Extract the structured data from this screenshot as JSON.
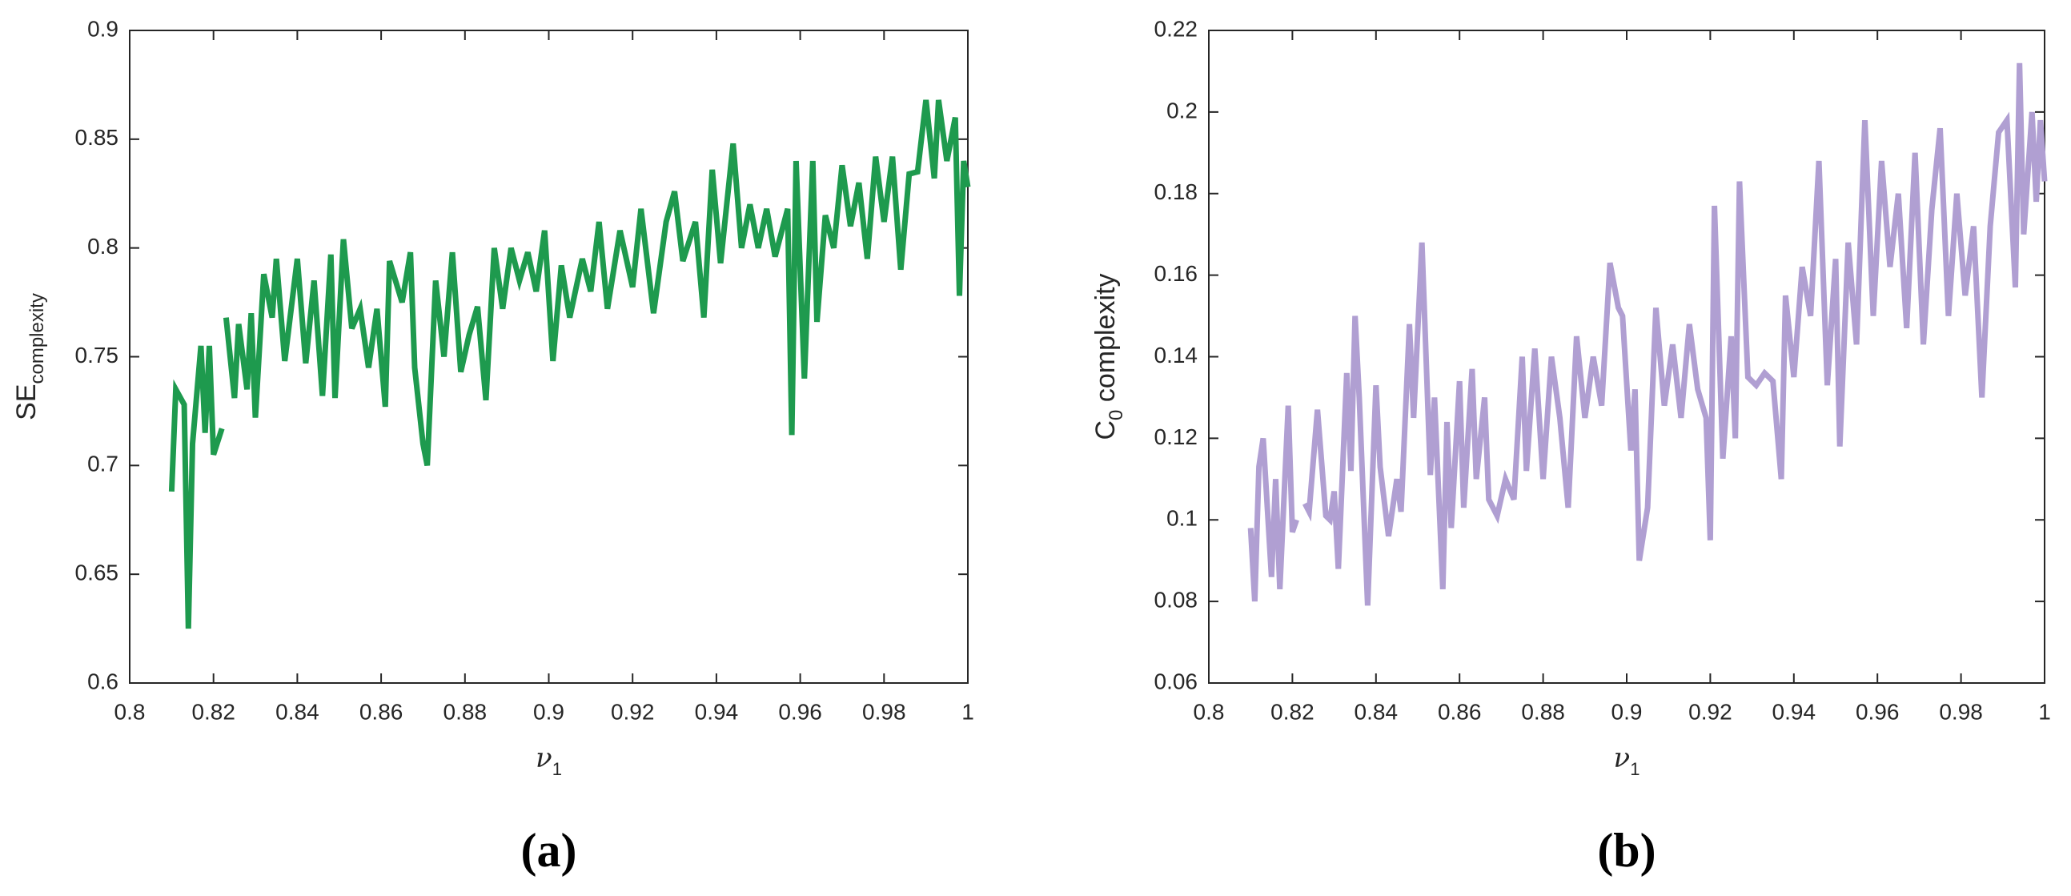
{
  "chart_data": [
    {
      "type": "line",
      "panel_label": "(a)",
      "xlabel": {
        "symbol": "ν",
        "subscript": "1"
      },
      "ylabel": {
        "text": "SE",
        "subscript": "complexity"
      },
      "xlim": [
        0.8,
        1
      ],
      "xticks": [
        0.8,
        0.82,
        0.84,
        0.86,
        0.88,
        0.9,
        0.92,
        0.94,
        0.96,
        0.98,
        1
      ],
      "ylim": [
        0.6,
        0.9
      ],
      "yticks": [
        0.6,
        0.65,
        0.7,
        0.75,
        0.8,
        0.85,
        0.9
      ],
      "color": "#1e9a4e",
      "x": [
        0.81,
        0.811,
        0.813,
        0.814,
        0.815,
        0.817,
        0.818,
        0.819,
        0.82,
        0.822,
        0.8225,
        0.823,
        0.825,
        0.826,
        0.828,
        0.829,
        0.83,
        0.832,
        0.834,
        0.835,
        0.837,
        0.84,
        0.842,
        0.844,
        0.846,
        0.848,
        0.849,
        0.851,
        0.853,
        0.855,
        0.857,
        0.859,
        0.861,
        0.862,
        0.865,
        0.867,
        0.868,
        0.87,
        0.871,
        0.873,
        0.875,
        0.877,
        0.879,
        0.881,
        0.883,
        0.885,
        0.887,
        0.889,
        0.891,
        0.893,
        0.895,
        0.897,
        0.899,
        0.901,
        0.903,
        0.905,
        0.908,
        0.91,
        0.912,
        0.914,
        0.917,
        0.92,
        0.922,
        0.925,
        0.928,
        0.93,
        0.932,
        0.935,
        0.937,
        0.939,
        0.941,
        0.944,
        0.946,
        0.948,
        0.95,
        0.952,
        0.954,
        0.957,
        0.958,
        0.959,
        0.961,
        0.963,
        0.964,
        0.966,
        0.968,
        0.97,
        0.972,
        0.974,
        0.976,
        0.978,
        0.98,
        0.982,
        0.984,
        0.986,
        0.988,
        0.99,
        0.992,
        0.993,
        0.995,
        0.997,
        0.998,
        0.999,
        1
      ],
      "values": [
        0.688,
        0.735,
        0.728,
        0.625,
        0.71,
        0.755,
        0.715,
        0.755,
        0.705,
        0.717,
        null,
        0.768,
        0.731,
        0.765,
        0.735,
        0.77,
        0.722,
        0.788,
        0.768,
        0.795,
        0.748,
        0.795,
        0.747,
        0.785,
        0.732,
        0.797,
        0.731,
        0.804,
        0.763,
        0.772,
        0.745,
        0.772,
        0.727,
        0.794,
        0.775,
        0.798,
        0.745,
        0.71,
        0.7,
        0.785,
        0.75,
        0.798,
        0.743,
        0.76,
        0.773,
        0.73,
        0.8,
        0.772,
        0.8,
        0.785,
        0.798,
        0.78,
        0.808,
        0.748,
        0.792,
        0.768,
        0.795,
        0.78,
        0.812,
        0.772,
        0.808,
        0.782,
        0.818,
        0.77,
        0.812,
        0.826,
        0.794,
        0.812,
        0.768,
        0.836,
        0.793,
        0.848,
        0.8,
        0.82,
        0.8,
        0.818,
        0.796,
        0.818,
        0.714,
        0.84,
        0.74,
        0.84,
        0.766,
        0.815,
        0.8,
        0.838,
        0.81,
        0.83,
        0.795,
        0.842,
        0.812,
        0.842,
        0.79,
        0.834,
        0.835,
        0.868,
        0.832,
        0.868,
        0.84,
        0.86,
        0.778,
        0.84,
        0.828
      ]
    },
    {
      "type": "line",
      "panel_label": "(b)",
      "xlabel": {
        "symbol": "ν",
        "subscript": "1"
      },
      "ylabel": {
        "text": "C",
        "subscript": "0",
        "suffix": " complexity"
      },
      "xlim": [
        0.8,
        1
      ],
      "xticks": [
        0.8,
        0.82,
        0.84,
        0.86,
        0.88,
        0.9,
        0.92,
        0.94,
        0.96,
        0.98,
        1
      ],
      "ylim": [
        0.06,
        0.22
      ],
      "yticks": [
        0.06,
        0.08,
        0.1,
        0.12,
        0.14,
        0.16,
        0.18,
        0.2,
        0.22
      ],
      "color": "#b09fd2",
      "x": [
        0.81,
        0.811,
        0.812,
        0.813,
        0.815,
        0.816,
        0.817,
        0.819,
        0.82,
        0.821,
        0.822,
        0.823,
        0.824,
        0.826,
        0.828,
        0.829,
        0.83,
        0.831,
        0.833,
        0.834,
        0.835,
        0.836,
        0.838,
        0.84,
        0.841,
        0.843,
        0.845,
        0.846,
        0.848,
        0.849,
        0.851,
        0.853,
        0.854,
        0.856,
        0.857,
        0.858,
        0.86,
        0.861,
        0.863,
        0.864,
        0.866,
        0.867,
        0.869,
        0.871,
        0.873,
        0.875,
        0.876,
        0.878,
        0.88,
        0.882,
        0.884,
        0.886,
        0.888,
        0.89,
        0.892,
        0.894,
        0.896,
        0.898,
        0.899,
        0.901,
        0.902,
        0.903,
        0.905,
        0.907,
        0.909,
        0.911,
        0.913,
        0.915,
        0.917,
        0.919,
        0.92,
        0.921,
        0.923,
        0.925,
        0.926,
        0.927,
        0.929,
        0.931,
        0.933,
        0.935,
        0.937,
        0.938,
        0.94,
        0.942,
        0.944,
        0.946,
        0.948,
        0.95,
        0.951,
        0.953,
        0.955,
        0.957,
        0.959,
        0.961,
        0.963,
        0.965,
        0.967,
        0.969,
        0.971,
        0.973,
        0.975,
        0.977,
        0.979,
        0.981,
        0.983,
        0.985,
        0.987,
        0.989,
        0.991,
        0.993,
        0.994,
        0.995,
        0.997,
        0.998,
        0.999,
        1
      ],
      "values": [
        0.098,
        0.08,
        0.113,
        0.12,
        0.086,
        0.11,
        0.083,
        0.128,
        0.097,
        0.1,
        null,
        0.104,
        0.102,
        0.127,
        0.101,
        0.1,
        0.107,
        0.088,
        0.136,
        0.112,
        0.15,
        0.13,
        0.079,
        0.133,
        0.113,
        0.096,
        0.11,
        0.102,
        0.148,
        0.125,
        0.168,
        0.111,
        0.13,
        0.083,
        0.124,
        0.098,
        0.134,
        0.103,
        0.137,
        0.11,
        0.13,
        0.105,
        0.101,
        0.11,
        0.105,
        0.14,
        0.112,
        0.142,
        0.11,
        0.14,
        0.125,
        0.103,
        0.145,
        0.125,
        0.14,
        0.128,
        0.163,
        0.152,
        0.15,
        0.117,
        0.132,
        0.09,
        0.103,
        0.152,
        0.128,
        0.143,
        0.125,
        0.148,
        0.132,
        0.125,
        0.095,
        0.177,
        0.115,
        0.145,
        0.12,
        0.183,
        0.135,
        0.133,
        0.136,
        0.134,
        0.11,
        0.155,
        0.135,
        0.162,
        0.15,
        0.188,
        0.133,
        0.164,
        0.118,
        0.168,
        0.143,
        0.198,
        0.15,
        0.188,
        0.162,
        0.18,
        0.147,
        0.19,
        0.143,
        0.176,
        0.196,
        0.15,
        0.18,
        0.155,
        0.172,
        0.13,
        0.172,
        0.195,
        0.198,
        0.157,
        0.212,
        0.17,
        0.2,
        0.178,
        0.198,
        0.183
      ]
    }
  ]
}
